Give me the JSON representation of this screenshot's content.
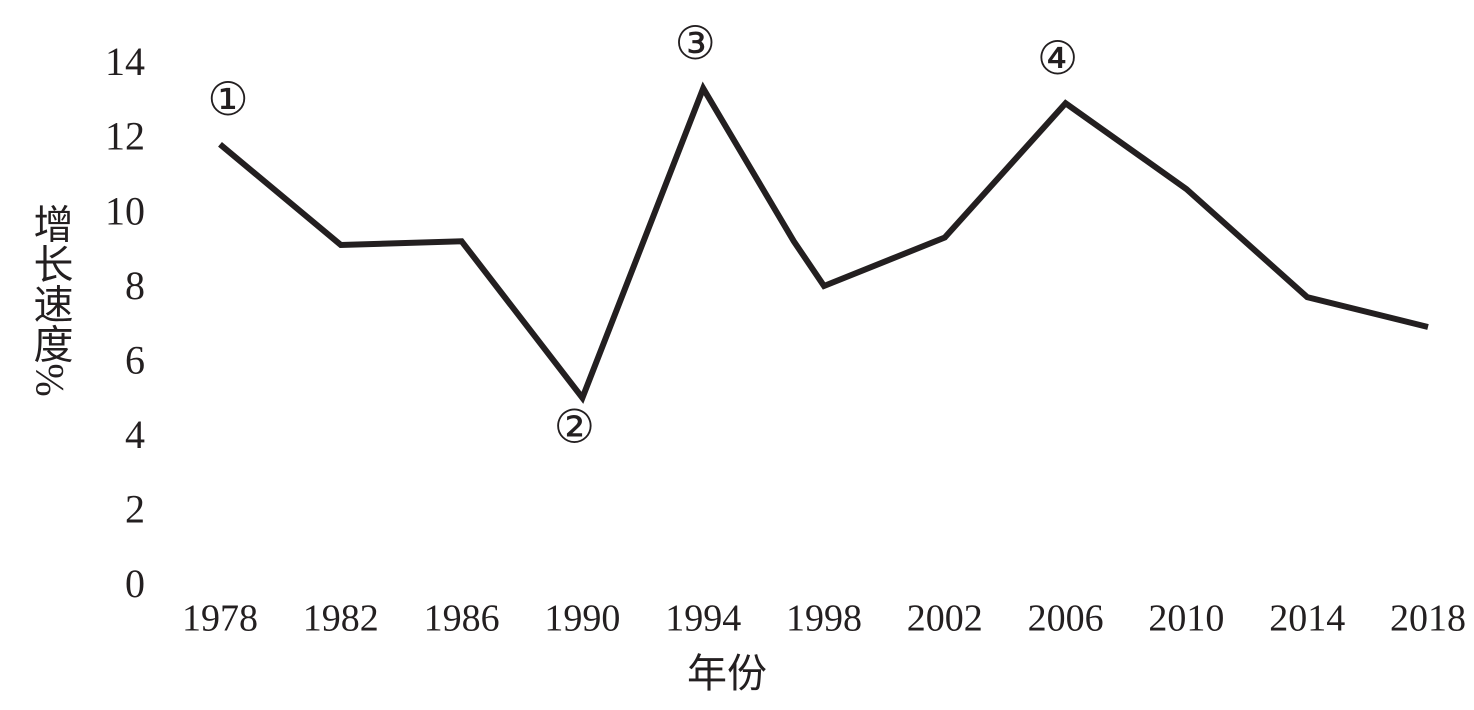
{
  "chart_data": {
    "type": "line",
    "x": [
      1978,
      1982,
      1986,
      1990,
      1994,
      1997,
      1998,
      2002,
      2006,
      2010,
      2014,
      2018
    ],
    "values": [
      11.9,
      9.2,
      9.3,
      5.1,
      13.4,
      9.3,
      8.1,
      9.4,
      13.0,
      10.7,
      7.8,
      7.0
    ],
    "color": "#231f20",
    "xlim": [
      1978,
      2018
    ],
    "xticks": [
      1978,
      1982,
      1986,
      1990,
      1994,
      1998,
      2002,
      2006,
      2010,
      2014,
      2018
    ],
    "ylim": [
      0,
      14
    ],
    "yticks": [
      0,
      2,
      4,
      6,
      8,
      10,
      12,
      14
    ],
    "xlabel": "年份",
    "ylabel": "增长速度%",
    "grid": false,
    "annotations": [
      {
        "text": "①",
        "x": 1978
      },
      {
        "text": "②",
        "x": 1990
      },
      {
        "text": "③",
        "x": 1994
      },
      {
        "text": "④",
        "x": 2006
      }
    ]
  }
}
